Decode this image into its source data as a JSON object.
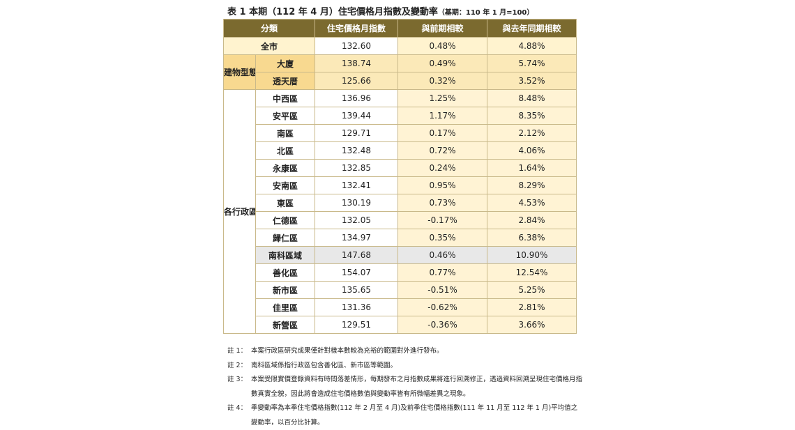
{
  "title": {
    "main": "表 1 本期（112 年 4 月）住宅價格月指數及變動率",
    "base": "（基期：110 年 1 月=100）"
  },
  "table": {
    "headers": [
      "分類",
      "住宅價格月指數",
      "與前期相較",
      "與去年同期相較"
    ],
    "all_row": {
      "label": "全市",
      "index": "132.60",
      "mom": "0.48%",
      "yoy": "4.88%"
    },
    "building_group": "建物型態",
    "building_rows": [
      {
        "label": "大廈",
        "index": "138.74",
        "mom": "0.49%",
        "yoy": "5.74%"
      },
      {
        "label": "透天厝",
        "index": "125.66",
        "mom": "0.32%",
        "yoy": "3.52%"
      }
    ],
    "district_group": "各行政區",
    "district_rows": [
      {
        "label": "中西區",
        "index": "136.96",
        "mom": "1.25%",
        "yoy": "8.48%"
      },
      {
        "label": "安平區",
        "index": "139.44",
        "mom": "1.17%",
        "yoy": "8.35%"
      },
      {
        "label": "南區",
        "index": "129.71",
        "mom": "0.17%",
        "yoy": "2.12%"
      },
      {
        "label": "北區",
        "index": "132.48",
        "mom": "0.72%",
        "yoy": "4.06%"
      },
      {
        "label": "永康區",
        "index": "132.85",
        "mom": "0.24%",
        "yoy": "1.64%"
      },
      {
        "label": "安南區",
        "index": "132.41",
        "mom": "0.95%",
        "yoy": "8.29%"
      },
      {
        "label": "東區",
        "index": "130.19",
        "mom": "0.73%",
        "yoy": "4.53%"
      },
      {
        "label": "仁德區",
        "index": "132.05",
        "mom": "-0.17%",
        "yoy": "2.84%"
      },
      {
        "label": "歸仁區",
        "index": "134.97",
        "mom": "0.35%",
        "yoy": "6.38%"
      },
      {
        "label": "南科區域",
        "index": "147.68",
        "mom": "0.46%",
        "yoy": "10.90%"
      },
      {
        "label": "善化區",
        "index": "154.07",
        "mom": "0.77%",
        "yoy": "12.54%"
      },
      {
        "label": "新市區",
        "index": "135.65",
        "mom": "-0.51%",
        "yoy": "5.25%"
      },
      {
        "label": "佳里區",
        "index": "131.36",
        "mom": "-0.62%",
        "yoy": "2.81%"
      },
      {
        "label": "新營區",
        "index": "129.51",
        "mom": "-0.36%",
        "yoy": "3.66%"
      }
    ]
  },
  "notes": [
    {
      "tag": "註 1：",
      "text": "本案行政區研究成果僅針對樣本數較為充裕的範圍對外進行發布。"
    },
    {
      "tag": "註 2：",
      "text": "南科區域係指行政區包含善化區、新市區等範圍。"
    },
    {
      "tag": "註 3：",
      "text": "本案受限實價登錄資料有時間落差情形，每期發布之月指數成果將進行回溯修正，透過資料回溯呈現住宅價格月指數真實全貌，因此將會造成住宅價格數值與變動率皆有所微幅差異之現象。"
    },
    {
      "tag": "註 4：",
      "text": "季變動率為本季住宅價格指數(112 年 2 月至 4 月)及前季住宅價格指數(111 年 11 月至 112 年 1 月)平均值之變動率，以百分比計算。"
    }
  ]
}
